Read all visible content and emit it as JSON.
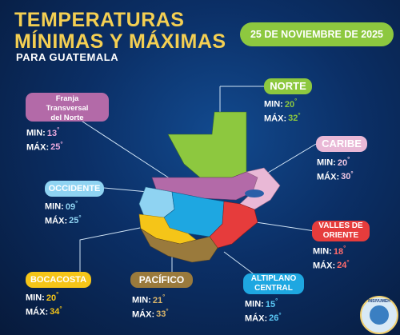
{
  "title": {
    "line1": "TEMPERATURAS",
    "line2": "MÍNIMAS Y MÁXIMAS"
  },
  "subtitle": "PARA GUATEMALA",
  "date": "25 DE NOVIEMBRE DE 2025",
  "labels": {
    "min": "MIN:",
    "max": "MÁX:"
  },
  "regions": {
    "norte": {
      "name": "NORTE",
      "min": "20",
      "max": "32",
      "color": "#8dc83f"
    },
    "franja": {
      "name_line1": "Franja",
      "name_line2": "Transversal",
      "name_line3": "del Norte",
      "min": "13",
      "max": "25",
      "color": "#b36aa8"
    },
    "caribe": {
      "name": "CARIBE",
      "min": "20",
      "max": "30",
      "color": "#e9b8d6"
    },
    "occidente": {
      "name": "OCCIDENTE",
      "min": "09",
      "max": "25",
      "color": "#8fd3f2"
    },
    "valles": {
      "name_line1": "VALLES DE",
      "name_line2": "ORIENTE",
      "min": "18",
      "max": "24",
      "color": "#e63c3c"
    },
    "bocacosta": {
      "name": "BOCACOSTA",
      "min": "20",
      "max": "34",
      "color": "#f5c518"
    },
    "pacifico": {
      "name": "PACÍFICO",
      "min": "21",
      "max": "33",
      "color": "#9a7a3c"
    },
    "altiplano": {
      "name_line1": "ALTIPLANO",
      "name_line2": "CENTRAL",
      "min": "15",
      "max": "26",
      "color": "#1ea7e1"
    }
  },
  "logo_text": "INSIVUMEH"
}
